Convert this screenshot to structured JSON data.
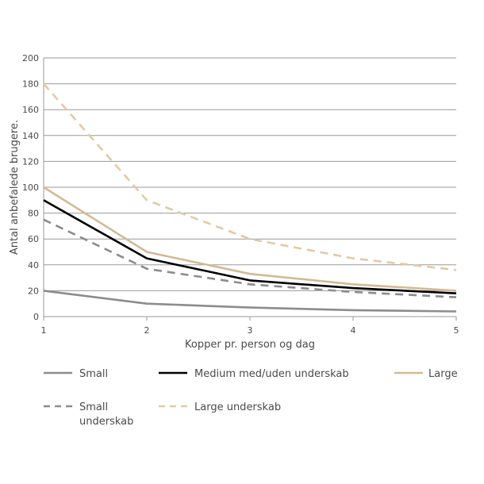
{
  "chart_data": {
    "type": "line",
    "title": "",
    "xlabel": "Kopper pr. person og dag",
    "ylabel": "Antal anbefalede brugere.",
    "x": [
      1,
      2,
      3,
      4,
      5
    ],
    "xlim": [
      1,
      5
    ],
    "ylim": [
      0,
      200
    ],
    "yticks": [
      0,
      20,
      40,
      60,
      80,
      100,
      120,
      140,
      160,
      180,
      200
    ],
    "xticks": [
      1,
      2,
      3,
      4,
      5
    ],
    "grid": true,
    "series": [
      {
        "name": "Small",
        "values": [
          20,
          10,
          7,
          5,
          4
        ],
        "color": "#8c8c8c",
        "dash": "solid"
      },
      {
        "name": "Medium med/uden underskab",
        "values": [
          90,
          45,
          28,
          22,
          18
        ],
        "color": "#000000",
        "dash": "solid"
      },
      {
        "name": "Large",
        "values": [
          100,
          50,
          33,
          25,
          20
        ],
        "color": "#d4b996",
        "dash": "solid"
      },
      {
        "name": "Small underskab",
        "values": [
          75,
          37,
          25,
          19,
          15
        ],
        "color": "#8c8c8c",
        "dash": "dashed"
      },
      {
        "name": "Large underskab",
        "values": [
          180,
          90,
          60,
          45,
          36
        ],
        "color": "#e3c9a4",
        "dash": "dashed"
      }
    ],
    "legend": [
      {
        "series": "Small",
        "lines": [
          "Small"
        ]
      },
      {
        "series": "Medium med/uden underskab",
        "lines": [
          "Medium med/uden underskab"
        ]
      },
      {
        "series": "Large",
        "lines": [
          "Large"
        ]
      },
      {
        "series": "Small underskab",
        "lines": [
          "Small",
          "underskab"
        ]
      },
      {
        "series": "Large underskab",
        "lines": [
          "Large underskab"
        ]
      }
    ]
  }
}
